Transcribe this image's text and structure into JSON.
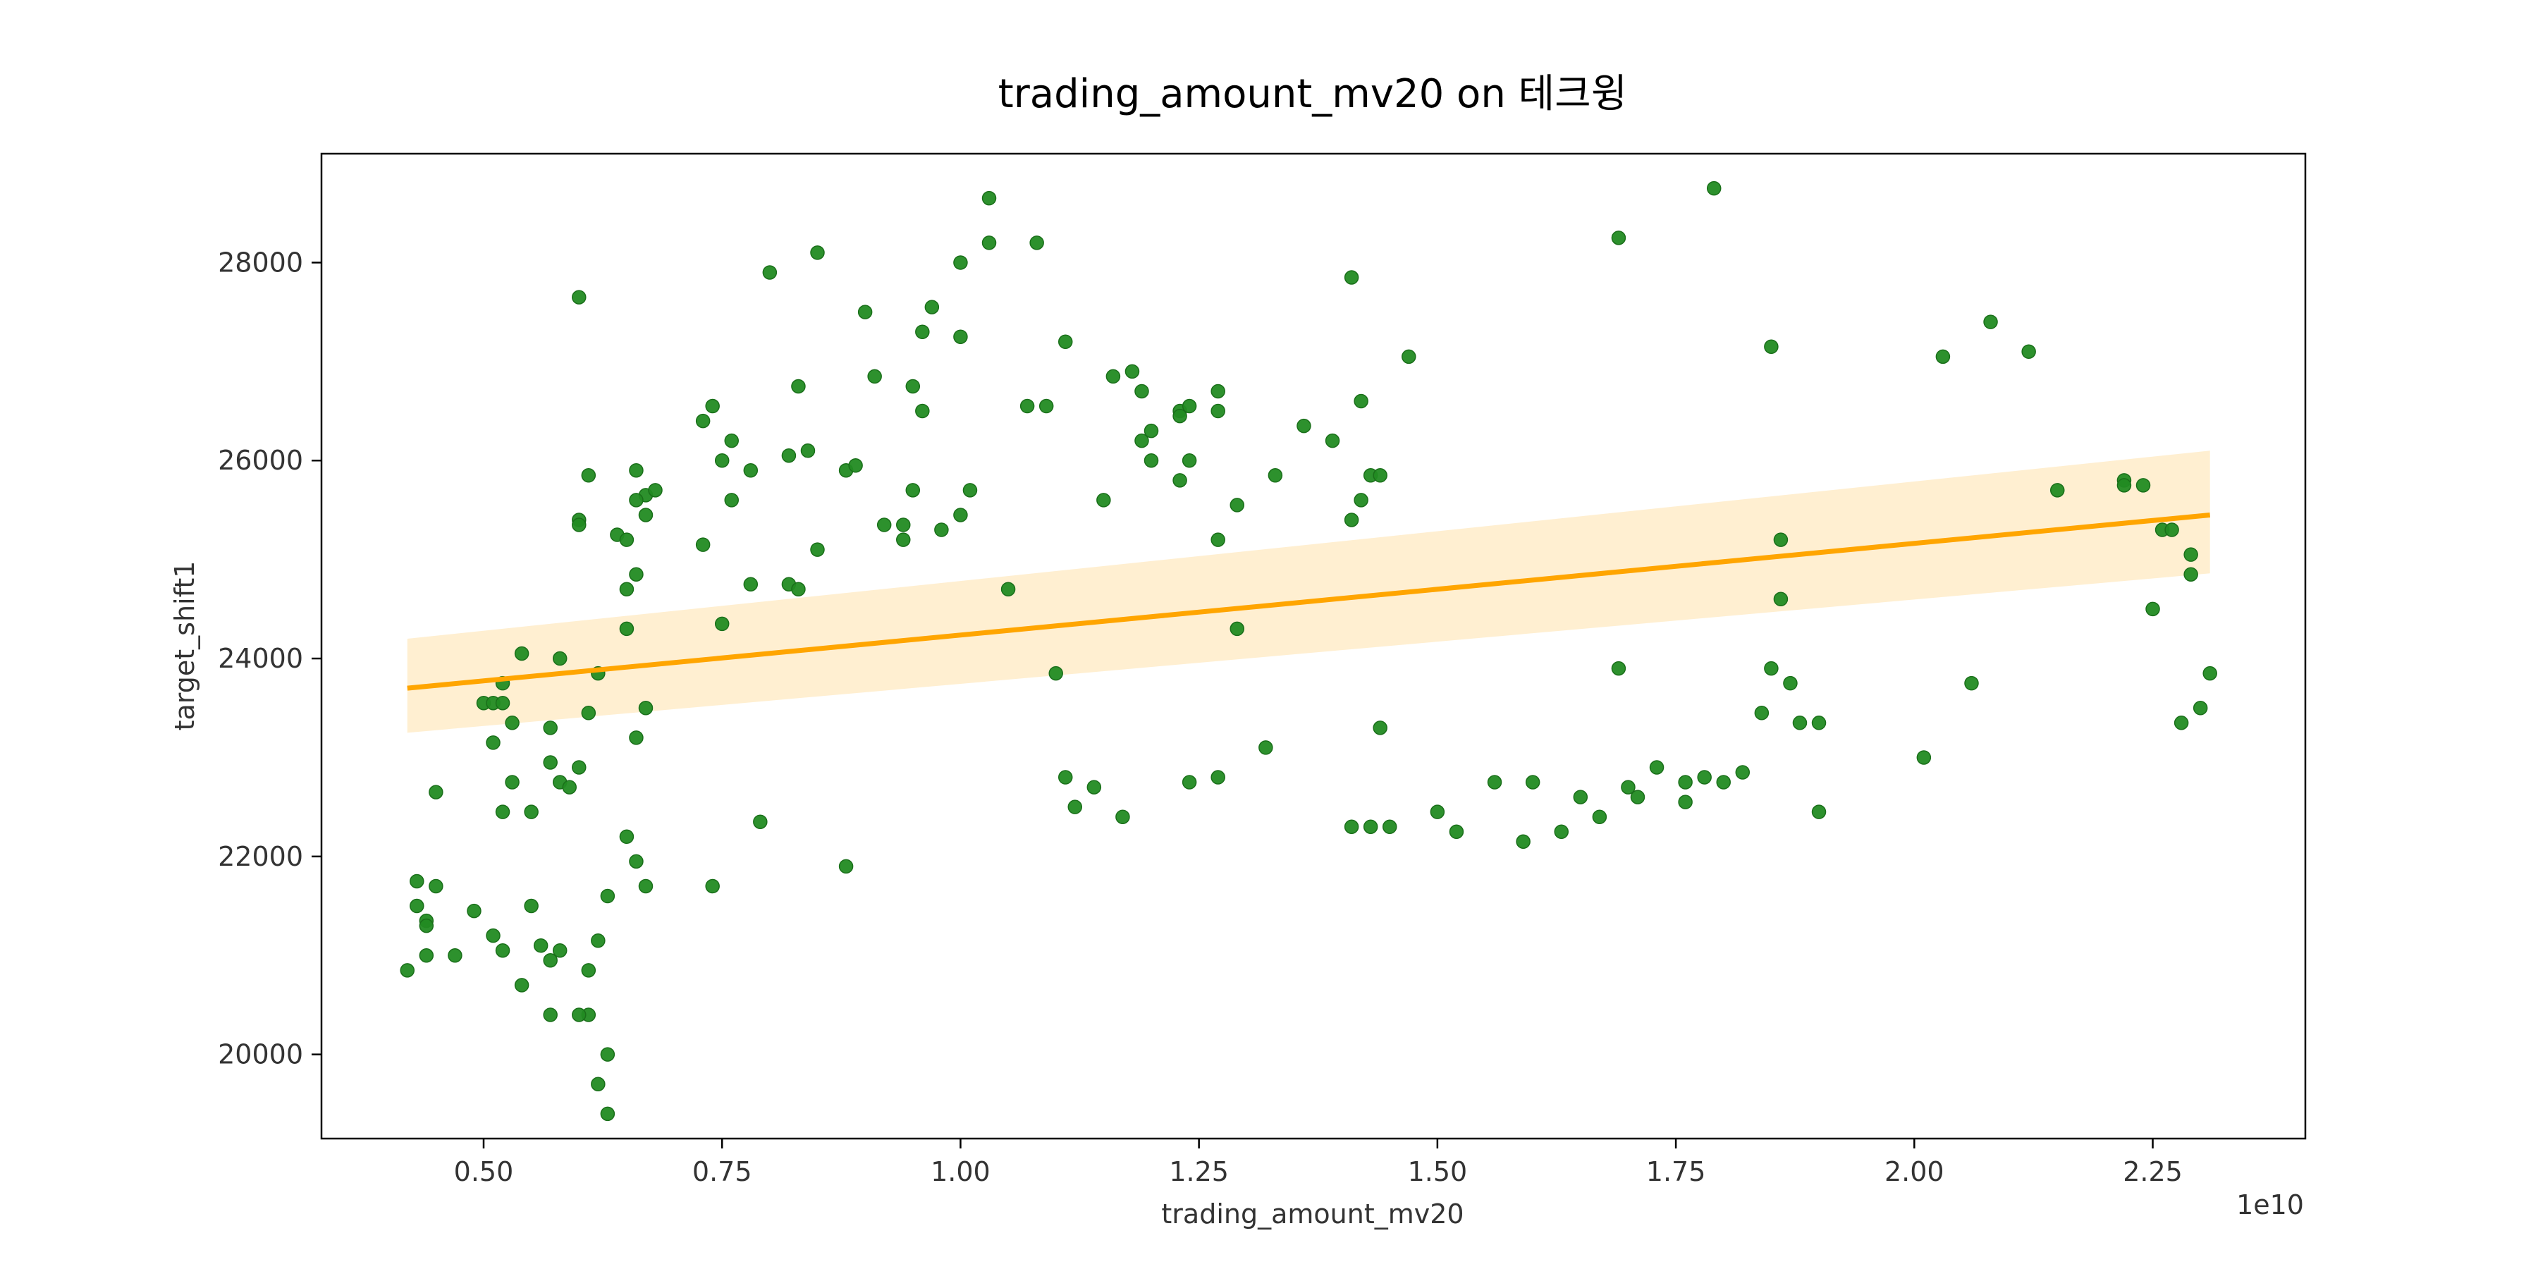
{
  "chart_data": {
    "type": "scatter",
    "title": "trading_amount_mv20 on 테크윙",
    "xlabel": "trading_amount_mv20",
    "ylabel": "target_shift1",
    "x_offset_label": "1e10",
    "x_unit_scale": 10000000000,
    "xlim": [
      0.33,
      2.41
    ],
    "ylim": [
      19150,
      29100
    ],
    "xticks": [
      0.5,
      0.75,
      1.0,
      1.25,
      1.5,
      1.75,
      2.0,
      2.25
    ],
    "xtick_labels": [
      "0.50",
      "0.75",
      "1.00",
      "1.25",
      "1.50",
      "1.75",
      "2.00",
      "2.25"
    ],
    "yticks": [
      20000,
      22000,
      24000,
      26000,
      28000
    ],
    "ytick_labels": [
      "20000",
      "22000",
      "24000",
      "26000",
      "28000"
    ],
    "grid": false,
    "colors": {
      "points": "#228b22",
      "points_edge": "#1a6f1a",
      "regression_line": "#ffa500",
      "confidence_band": "#ffecc9"
    },
    "regression": {
      "x": [
        0.42,
        2.31
      ],
      "y": [
        23700,
        25450
      ],
      "ci_lower": [
        23250,
        24860
      ],
      "ci_upper": [
        24200,
        26100
      ]
    },
    "points": [
      [
        0.6,
        27650
      ],
      [
        0.8,
        27900
      ],
      [
        0.85,
        28100
      ],
      [
        0.9,
        27500
      ],
      [
        0.97,
        27550
      ],
      [
        0.96,
        27300
      ],
      [
        1.0,
        27250
      ],
      [
        1.0,
        28000
      ],
      [
        1.03,
        28200
      ],
      [
        1.03,
        28650
      ],
      [
        1.08,
        28200
      ],
      [
        1.11,
        27200
      ],
      [
        0.74,
        26550
      ],
      [
        0.73,
        26400
      ],
      [
        0.76,
        26200
      ],
      [
        0.83,
        26750
      ],
      [
        0.84,
        26100
      ],
      [
        0.82,
        26050
      ],
      [
        0.91,
        26850
      ],
      [
        0.95,
        26750
      ],
      [
        0.96,
        26500
      ],
      [
        1.07,
        26550
      ],
      [
        1.09,
        26550
      ],
      [
        1.16,
        26850
      ],
      [
        1.18,
        26900
      ],
      [
        1.19,
        26700
      ],
      [
        1.23,
        26500
      ],
      [
        1.23,
        26450
      ],
      [
        1.24,
        26550
      ],
      [
        1.27,
        26700
      ],
      [
        1.27,
        26500
      ],
      [
        0.61,
        25850
      ],
      [
        0.6,
        25400
      ],
      [
        0.6,
        25350
      ],
      [
        0.66,
        25900
      ],
      [
        0.67,
        25650
      ],
      [
        0.68,
        25700
      ],
      [
        0.66,
        25600
      ],
      [
        0.67,
        25450
      ],
      [
        0.64,
        25250
      ],
      [
        0.65,
        25200
      ],
      [
        0.76,
        25600
      ],
      [
        0.75,
        26000
      ],
      [
        0.78,
        25900
      ],
      [
        0.73,
        25150
      ],
      [
        0.85,
        25100
      ],
      [
        0.88,
        25900
      ],
      [
        0.89,
        25950
      ],
      [
        0.92,
        25350
      ],
      [
        0.94,
        25350
      ],
      [
        0.94,
        25200
      ],
      [
        0.95,
        25700
      ],
      [
        0.98,
        25300
      ],
      [
        1.0,
        25450
      ],
      [
        1.01,
        25700
      ],
      [
        1.15,
        25600
      ],
      [
        1.19,
        26200
      ],
      [
        1.2,
        26300
      ],
      [
        1.2,
        26000
      ],
      [
        1.24,
        26000
      ],
      [
        1.23,
        25800
      ],
      [
        1.27,
        25200
      ],
      [
        1.29,
        25550
      ],
      [
        1.33,
        25850
      ],
      [
        1.36,
        26350
      ],
      [
        1.39,
        26200
      ],
      [
        1.42,
        26600
      ],
      [
        1.41,
        27850
      ],
      [
        1.41,
        25400
      ],
      [
        1.42,
        25600
      ],
      [
        1.43,
        25850
      ],
      [
        1.44,
        25850
      ],
      [
        1.47,
        27050
      ],
      [
        0.65,
        24700
      ],
      [
        0.66,
        24850
      ],
      [
        0.65,
        24300
      ],
      [
        0.75,
        24350
      ],
      [
        0.78,
        24750
      ],
      [
        0.82,
        24750
      ],
      [
        0.83,
        24700
      ],
      [
        1.05,
        24700
      ],
      [
        1.29,
        24300
      ],
      [
        0.58,
        24000
      ],
      [
        0.54,
        24050
      ],
      [
        0.62,
        23850
      ],
      [
        0.52,
        23750
      ],
      [
        0.5,
        23550
      ],
      [
        0.51,
        23550
      ],
      [
        0.52,
        23550
      ],
      [
        0.53,
        23350
      ],
      [
        0.57,
        23300
      ],
      [
        0.61,
        23450
      ],
      [
        0.67,
        23500
      ],
      [
        0.66,
        23200
      ],
      [
        0.51,
        23150
      ],
      [
        1.1,
        23850
      ],
      [
        1.32,
        23100
      ],
      [
        1.44,
        23300
      ],
      [
        0.57,
        22950
      ],
      [
        0.6,
        22900
      ],
      [
        0.53,
        22750
      ],
      [
        0.58,
        22750
      ],
      [
        0.59,
        22700
      ],
      [
        0.45,
        22650
      ],
      [
        0.52,
        22450
      ],
      [
        0.55,
        22450
      ],
      [
        0.79,
        22350
      ],
      [
        0.65,
        22200
      ],
      [
        0.66,
        21950
      ],
      [
        0.67,
        21700
      ],
      [
        0.74,
        21700
      ],
      [
        0.88,
        21900
      ],
      [
        1.11,
        22800
      ],
      [
        1.14,
        22700
      ],
      [
        1.12,
        22500
      ],
      [
        1.17,
        22400
      ],
      [
        1.24,
        22750
      ],
      [
        1.27,
        22800
      ],
      [
        1.41,
        22300
      ],
      [
        1.43,
        22300
      ],
      [
        1.45,
        22300
      ],
      [
        1.5,
        22450
      ],
      [
        1.52,
        22250
      ],
      [
        1.56,
        22750
      ],
      [
        1.6,
        22750
      ],
      [
        1.59,
        22150
      ],
      [
        1.63,
        22250
      ],
      [
        1.65,
        22600
      ],
      [
        1.67,
        22400
      ],
      [
        1.69,
        23900
      ],
      [
        1.7,
        22700
      ],
      [
        1.71,
        22600
      ],
      [
        1.73,
        22900
      ],
      [
        1.76,
        22750
      ],
      [
        1.76,
        22550
      ],
      [
        1.78,
        22800
      ],
      [
        1.8,
        22750
      ],
      [
        1.82,
        22850
      ],
      [
        1.84,
        23450
      ],
      [
        1.85,
        23900
      ],
      [
        1.87,
        23750
      ],
      [
        1.88,
        23350
      ],
      [
        1.9,
        23350
      ],
      [
        1.9,
        22450
      ],
      [
        1.69,
        28250
      ],
      [
        1.79,
        28750
      ],
      [
        1.85,
        27150
      ],
      [
        1.86,
        24600
      ],
      [
        1.86,
        25200
      ],
      [
        2.01,
        23000
      ],
      [
        2.03,
        27050
      ],
      [
        2.08,
        27400
      ],
      [
        2.06,
        23750
      ],
      [
        2.12,
        27100
      ],
      [
        2.15,
        25700
      ],
      [
        2.22,
        25800
      ],
      [
        2.22,
        25750
      ],
      [
        2.24,
        25750
      ],
      [
        2.25,
        24500
      ],
      [
        2.26,
        25300
      ],
      [
        2.27,
        25300
      ],
      [
        2.29,
        25050
      ],
      [
        2.29,
        24850
      ],
      [
        2.28,
        23350
      ],
      [
        2.3,
        23500
      ],
      [
        2.31,
        23850
      ],
      [
        0.43,
        21750
      ],
      [
        0.43,
        21500
      ],
      [
        0.44,
        21350
      ],
      [
        0.44,
        21300
      ],
      [
        0.45,
        21700
      ],
      [
        0.42,
        20850
      ],
      [
        0.44,
        21000
      ],
      [
        0.47,
        21000
      ],
      [
        0.49,
        21450
      ],
      [
        0.51,
        21200
      ],
      [
        0.52,
        21050
      ],
      [
        0.55,
        21500
      ],
      [
        0.56,
        21100
      ],
      [
        0.57,
        20950
      ],
      [
        0.58,
        21050
      ],
      [
        0.54,
        20700
      ],
      [
        0.57,
        20400
      ],
      [
        0.61,
        20400
      ],
      [
        0.62,
        21150
      ],
      [
        0.61,
        20850
      ],
      [
        0.63,
        21600
      ],
      [
        0.6,
        20400
      ],
      [
        0.62,
        19700
      ],
      [
        0.63,
        20000
      ],
      [
        0.63,
        19400
      ]
    ]
  }
}
